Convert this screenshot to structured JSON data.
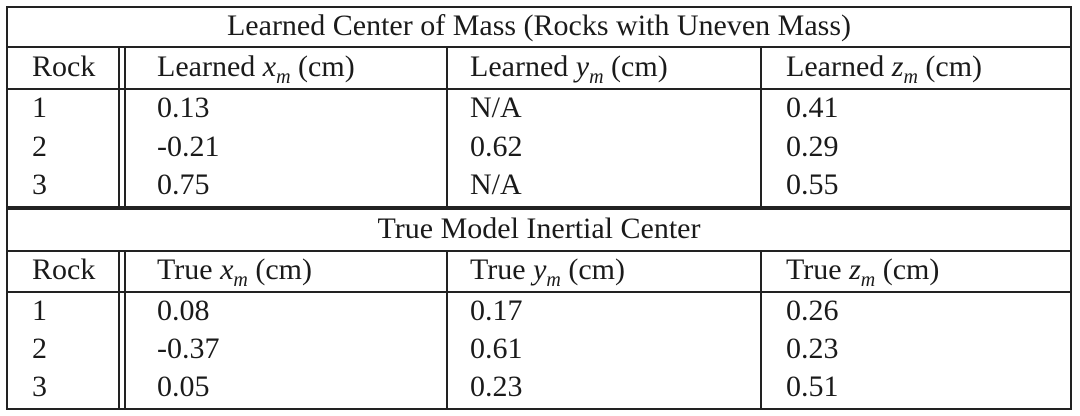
{
  "section1": {
    "title": "Learned Center of Mass (Rocks with Uneven Mass)",
    "headers": [
      {
        "text": "Rock"
      },
      {
        "prefix": "Learned",
        "var": "x",
        "sub": "m",
        "unit": "(cm)"
      },
      {
        "prefix": "Learned",
        "var": "y",
        "sub": "m",
        "unit": "(cm)"
      },
      {
        "prefix": "Learned",
        "var": "z",
        "sub": "m",
        "unit": "(cm)"
      }
    ],
    "rows": [
      [
        "1",
        "0.13",
        "N/A",
        "0.41"
      ],
      [
        "2",
        "-0.21",
        "0.62",
        "0.29"
      ],
      [
        "3",
        "0.75",
        "N/A",
        "0.55"
      ]
    ]
  },
  "section2": {
    "title": "True Model Inertial Center",
    "headers": [
      {
        "text": "Rock"
      },
      {
        "prefix": "True",
        "var": "x",
        "sub": "m",
        "unit": "(cm)"
      },
      {
        "prefix": "True",
        "var": "y",
        "sub": "m",
        "unit": "(cm)"
      },
      {
        "prefix": "True",
        "var": "z",
        "sub": "m",
        "unit": "(cm)"
      }
    ],
    "rows": [
      [
        "1",
        "0.08",
        "0.17",
        "0.26"
      ],
      [
        "2",
        "-0.37",
        "0.61",
        "0.23"
      ],
      [
        "3",
        "0.05",
        "0.23",
        "0.51"
      ]
    ]
  }
}
